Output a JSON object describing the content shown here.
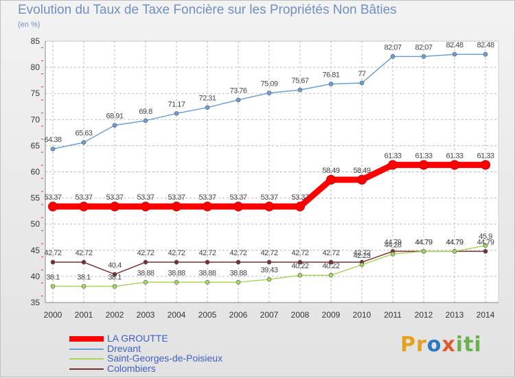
{
  "chart_data": {
    "type": "line",
    "title": "Evolution du Taux de Taxe Foncière sur les Propriétés Non Bâties",
    "subtitle": "(en %)",
    "x": [
      "2000",
      "2001",
      "2002",
      "2003",
      "2004",
      "2005",
      "2006",
      "2007",
      "2008",
      "2009",
      "2010",
      "2011",
      "2012",
      "2013",
      "2014"
    ],
    "ylim": [
      35,
      85
    ],
    "yticks": [
      35,
      40,
      45,
      50,
      55,
      60,
      65,
      70,
      75,
      80,
      85
    ],
    "series": [
      {
        "name": "LA GROUTTE",
        "color": "#ff0000",
        "values": [
          53.37,
          53.37,
          53.37,
          53.37,
          53.37,
          53.37,
          53.37,
          53.37,
          53.37,
          58.49,
          58.49,
          61.33,
          61.33,
          61.33,
          61.33
        ],
        "labels": [
          "53.37",
          "53.37",
          "53.37",
          "53.37",
          "53.37",
          "53.37",
          "53.37",
          "53.37",
          "53.37",
          "58.49",
          "58.49",
          "61.33",
          "61.33",
          "61.33",
          "61.33"
        ]
      },
      {
        "name": "Drevant",
        "color": "#6a9fd8",
        "values": [
          64.38,
          65.63,
          68.91,
          69.8,
          71.17,
          72.31,
          73.76,
          75.09,
          75.67,
          76.81,
          77,
          82.07,
          82.07,
          82.48,
          82.48
        ],
        "labels": [
          "64.38",
          "65.63",
          "68.91",
          "69.8",
          "71.17",
          "72.31",
          "73.76",
          "75.09",
          "75.67",
          "76.81",
          "77",
          "82.07",
          "82.07",
          "82.48",
          "82.48"
        ]
      },
      {
        "name": "Saint-Georges-de-Poisieux",
        "color": "#a4d65e",
        "values": [
          38.1,
          38.1,
          38.1,
          38.88,
          38.88,
          38.88,
          38.88,
          39.43,
          40.22,
          40.22,
          42.23,
          44.28,
          44.79,
          44.79,
          45.9
        ],
        "labels": [
          "38.1",
          "38.1",
          "38.1",
          "38.88",
          "38.88",
          "38.88",
          "38.88",
          "39.43",
          "40.22",
          "40.22",
          "42.23",
          "44.28",
          "44.79",
          "44.79",
          "45.9"
        ]
      },
      {
        "name": "Colombiers",
        "color": "#7a2e2e",
        "values": [
          42.72,
          42.72,
          40.4,
          42.72,
          42.72,
          42.72,
          42.72,
          42.72,
          42.72,
          42.72,
          42.72,
          44.79,
          44.79,
          44.79,
          44.79
        ],
        "labels": [
          "42.72",
          "42.72",
          "40.4",
          "42.72",
          "42.72",
          "42.72",
          "42.72",
          "42.72",
          "42.72",
          "42.72",
          "42.72",
          "44.79",
          "44.79",
          "44.79",
          "44.79"
        ]
      }
    ],
    "legend_position": "bottom-left"
  },
  "logo": {
    "part1": "Pr",
    "part2": "o",
    "part3": "x",
    "part4": "iti"
  }
}
